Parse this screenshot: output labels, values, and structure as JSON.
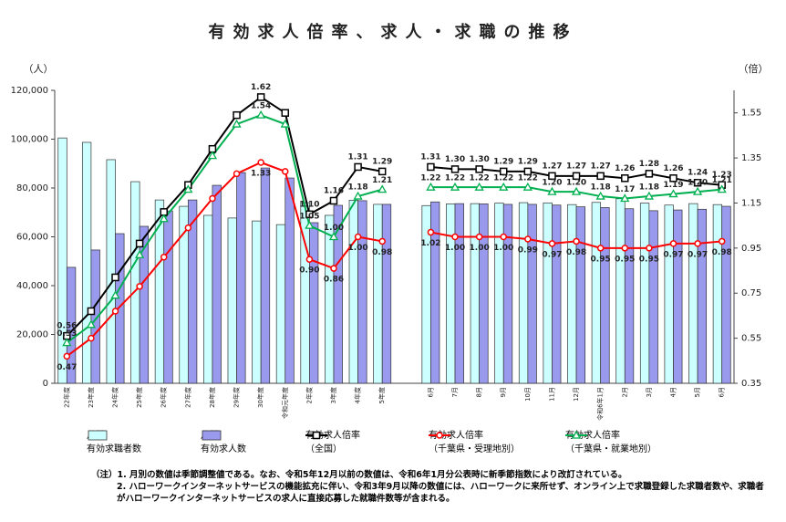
{
  "chart_data": {
    "type": "combo",
    "title": "有効求人倍率、求人・求職の推移",
    "y_unit": "（人）",
    "y2_unit": "（倍）",
    "categories": [
      "22年度",
      "23年度",
      "24年度",
      "25年度",
      "26年度",
      "27年度",
      "28年度",
      "29年度",
      "30年度",
      "令和元年度",
      "2年度",
      "3年度",
      "4年度",
      "5年度",
      null,
      "6月",
      "7月",
      "8月",
      "9月",
      "10月",
      "11月",
      "12月",
      "令和6年1月",
      "2月",
      "3月",
      "4月",
      "5月",
      "6月"
    ],
    "ylim": [
      0,
      120000
    ],
    "yticks": [
      0,
      {
        "value": 20000,
        "label": "20,000"
      },
      {
        "value": 40000,
        "label": "40,000"
      },
      {
        "value": 60000,
        "label": "60,000"
      },
      {
        "value": 80000,
        "label": "80,000"
      },
      {
        "value": 100000,
        "label": "100,000"
      },
      {
        "value": 120000,
        "label": "120,000"
      }
    ],
    "y2lim": [
      0.35,
      1.65
    ],
    "y2ticks": [
      0.35,
      0.55,
      0.75,
      0.95,
      1.15,
      1.35,
      1.55
    ],
    "series": [
      {
        "name": "月間\n有効求職者数",
        "type": "bar",
        "color": "#ccffff",
        "values": [
          100500,
          98700,
          91600,
          82600,
          75100,
          72500,
          68800,
          67700,
          66500,
          65000,
          74000,
          68800,
          75000,
          73300,
          null,
          72800,
          73500,
          73600,
          73800,
          74000,
          73900,
          73200,
          74100,
          75600,
          73800,
          73000,
          73600,
          73200
        ]
      },
      {
        "name": "月間\n有効求人数",
        "type": "bar",
        "color": "#9999ee",
        "values": [
          47500,
          54600,
          61300,
          64300,
          70600,
          75100,
          81100,
          86300,
          88200,
          84100,
          65800,
          72900,
          74800,
          73300,
          null,
          74300,
          73600,
          73500,
          73300,
          73300,
          73000,
          72300,
          72000,
          71500,
          70700,
          71000,
          71300,
          72500
        ]
      },
      {
        "name": "有効求人倍率\n（全国）",
        "type": "line",
        "axis": "y2",
        "color": "#000000",
        "marker": "square",
        "values": [
          0.56,
          0.67,
          0.82,
          0.97,
          1.11,
          1.23,
          1.39,
          1.54,
          1.62,
          1.55,
          1.1,
          1.16,
          1.31,
          1.29,
          null,
          1.31,
          1.3,
          1.3,
          1.29,
          1.29,
          1.27,
          1.27,
          1.27,
          1.26,
          1.28,
          1.26,
          1.24,
          1.23
        ],
        "value_labels": [
          "0.56",
          null,
          null,
          null,
          null,
          null,
          null,
          null,
          "1.62",
          null,
          "1.10",
          "1.16",
          "1.31",
          "1.29",
          null,
          "1.31",
          "1.30",
          "1.30",
          "1.29",
          "1.29",
          "1.27",
          "1.27",
          "1.27",
          "1.26",
          "1.28",
          "1.26",
          "1.24",
          "1.23"
        ]
      },
      {
        "name": "有効求人倍率\n（千葉県・受理地別）",
        "type": "line",
        "axis": "y2",
        "color": "#ff0000",
        "marker": "circle",
        "values": [
          0.47,
          0.55,
          0.67,
          0.78,
          0.91,
          1.04,
          1.17,
          1.28,
          1.33,
          1.29,
          0.9,
          0.86,
          1.0,
          0.98,
          null,
          1.02,
          1.0,
          1.0,
          1.0,
          0.99,
          0.97,
          0.98,
          0.95,
          0.95,
          0.95,
          0.97,
          0.97,
          0.98
        ],
        "value_labels": [
          "0.47",
          null,
          null,
          null,
          null,
          null,
          null,
          null,
          "1.33",
          null,
          "0.90",
          "0.86",
          "1.00",
          "0.98",
          null,
          "1.02",
          "1.00",
          "1.00",
          "1.00",
          "0.99",
          "0.97",
          "0.98",
          "0.95",
          "0.95",
          "0.95",
          "0.97",
          "0.97",
          "0.98"
        ]
      },
      {
        "name": "有効求人倍率\n（千葉県・就業地別）",
        "type": "line",
        "axis": "y2",
        "color": "#00b050",
        "marker": "triangle",
        "values": [
          0.53,
          0.61,
          0.74,
          0.92,
          1.08,
          1.21,
          1.36,
          1.5,
          1.54,
          1.5,
          1.05,
          1.0,
          1.18,
          1.21,
          null,
          1.22,
          1.22,
          1.22,
          1.22,
          1.22,
          1.2,
          1.2,
          1.18,
          1.17,
          1.18,
          1.19,
          1.2,
          1.21
        ],
        "value_labels": [
          "0.53",
          null,
          null,
          null,
          null,
          null,
          null,
          null,
          "1.54",
          null,
          "1.05",
          "1.00",
          "1.18",
          "1.21",
          null,
          "1.22",
          "1.22",
          "1.22",
          "1.22",
          "1.22",
          "1.20",
          "1.20",
          "1.18",
          "1.17",
          "1.18",
          "1.19",
          "1.20",
          "1.21"
        ]
      }
    ],
    "notes": [
      "（注）1. 月別の数値は季節調整値である。なお、令和5年12月以前の数値は、令和6年1月分公表時に新季節指数により改訂されている。",
      "2. ハローワークインターネットサービスの機能拡充に伴い、令和3年9月以降の数値には、ハローワークに来所せず、オンライン上で求職登録した求職者数や、求職者がハローワークインターネットサービスの求人に直接応募した就職件数等が含まれる。"
    ]
  }
}
